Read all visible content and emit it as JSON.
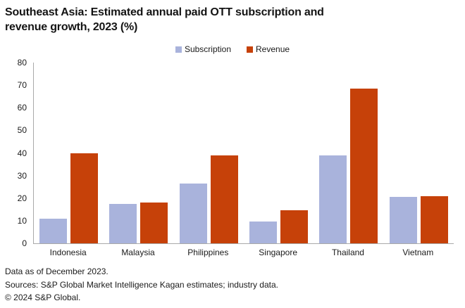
{
  "title": "Southeast Asia: Estimated annual paid OTT subscription and revenue growth, 2023 (%)",
  "footer": {
    "line1": "Data as of December 2023.",
    "line2": "Sources: S&P Global Market Intelligence Kagan estimates; industry data.",
    "line3": "© 2024 S&P Global."
  },
  "colors": {
    "subscription": "#a9b3dc",
    "revenue": "#c64109",
    "axis": "#a9a9a9",
    "text": "#1a1a1a"
  },
  "chart_data": {
    "type": "bar",
    "title": "Southeast Asia: Estimated annual paid OTT subscription and revenue growth, 2023 (%)",
    "categories": [
      "Indonesia",
      "Malaysia",
      "Philippines",
      "Singapore",
      "Thailand",
      "Vietnam"
    ],
    "series": [
      {
        "name": "Subscription",
        "color": "#a9b3dc",
        "values": [
          11,
          17.5,
          26.5,
          9.5,
          39,
          20.5
        ]
      },
      {
        "name": "Revenue",
        "color": "#c64109",
        "values": [
          40,
          18,
          39,
          14.5,
          68.5,
          21
        ]
      }
    ],
    "xlabel": "",
    "ylabel": "",
    "ylim": [
      0,
      80
    ],
    "yticks": [
      0,
      10,
      20,
      30,
      40,
      50,
      60,
      70,
      80
    ],
    "grid": false,
    "legend_position": "top-center"
  }
}
